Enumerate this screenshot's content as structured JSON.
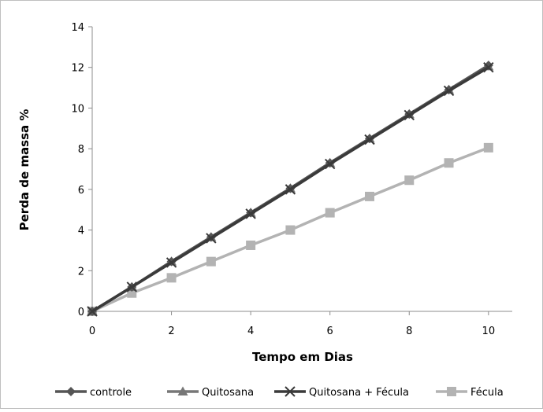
{
  "chart_data": {
    "type": "line",
    "title": "",
    "xlabel": "Tempo em Dias",
    "ylabel": "Perda de massa %",
    "xlim": [
      0,
      10.6
    ],
    "ylim": [
      0,
      14
    ],
    "x_ticks": [
      0,
      2,
      4,
      6,
      8,
      10
    ],
    "y_ticks": [
      0,
      2,
      4,
      6,
      8,
      10,
      12,
      14
    ],
    "x_tick_labels": [
      "0",
      "2",
      "4",
      "6",
      "8",
      "10"
    ],
    "y_tick_labels": [
      "0",
      "2",
      "4",
      "6",
      "8",
      "10",
      "12",
      "14"
    ],
    "grid": false,
    "legend_position": "bottom",
    "x": [
      0,
      1,
      2,
      3,
      4,
      5,
      6,
      7,
      8,
      9,
      10
    ],
    "series": [
      {
        "name": "controle",
        "marker": "diamond",
        "color": "#555555",
        "values": [
          0.0,
          1.2,
          2.45,
          3.65,
          4.85,
          6.05,
          7.3,
          8.5,
          9.7,
          10.9,
          12.1
        ]
      },
      {
        "name": "Quitosana",
        "marker": "triangle",
        "color": "#777777",
        "values": [
          0.0,
          1.2,
          2.45,
          3.65,
          4.85,
          6.05,
          7.3,
          8.5,
          9.7,
          10.9,
          12.05
        ]
      },
      {
        "name": "Quitosana + Fécula",
        "marker": "x",
        "color": "#3a3a3a",
        "values": [
          0.0,
          1.2,
          2.4,
          3.6,
          4.8,
          6.0,
          7.25,
          8.45,
          9.65,
          10.85,
          12.0
        ]
      },
      {
        "name": "Fécula",
        "marker": "square",
        "color": "#b3b3b3",
        "values": [
          0.0,
          0.9,
          1.65,
          2.45,
          3.25,
          4.0,
          4.85,
          5.65,
          6.45,
          7.3,
          8.05
        ]
      }
    ]
  }
}
